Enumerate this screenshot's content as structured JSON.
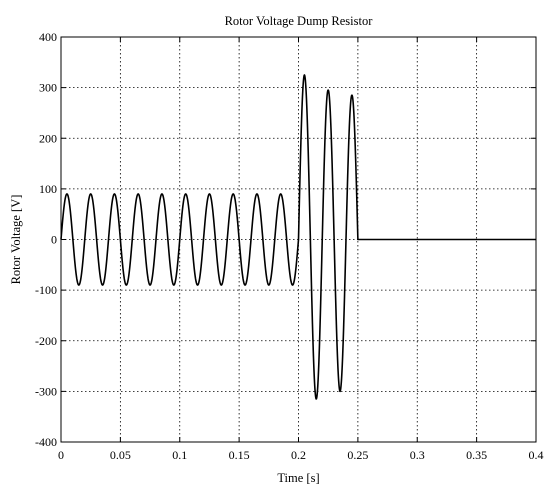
{
  "chart_data": {
    "type": "line",
    "title": "Rotor Voltage Dump Resistor",
    "xlabel": "Time [s]",
    "ylabel": "Rotor Voltage [V]",
    "xlim": [
      0,
      0.4
    ],
    "ylim": [
      -400,
      400
    ],
    "xticks": [
      0,
      0.05,
      0.1,
      0.15,
      0.2,
      0.25,
      0.3,
      0.35,
      0.4
    ],
    "xtick_labels": [
      "0",
      "0.05",
      "0.1",
      "0.15",
      "0.2",
      "0.25",
      "0.3",
      "0.35",
      "0.4"
    ],
    "yticks": [
      -400,
      -300,
      -200,
      -100,
      0,
      100,
      200,
      300,
      400
    ],
    "ytick_labels": [
      "-400",
      "-300",
      "-200",
      "-100",
      "0",
      "100",
      "200",
      "300",
      "400"
    ],
    "grid": true,
    "grid_style": "dotted",
    "line_color": "#000000",
    "series": [
      {
        "segments": [
          {
            "kind": "sine",
            "t_start": 0,
            "t_end": 0.2,
            "amplitude": 90,
            "frequency_hz": 50
          },
          {
            "kind": "sine",
            "t_start": 0.2,
            "t_end": 0.25,
            "frequency_hz": 50,
            "peaks": [
              {
                "t": 0.205,
                "v": 325
              },
              {
                "t": 0.215,
                "v": -315
              },
              {
                "t": 0.225,
                "v": 295
              },
              {
                "t": 0.235,
                "v": -300
              },
              {
                "t": 0.245,
                "v": 285
              }
            ]
          },
          {
            "kind": "constant",
            "t_start": 0.25,
            "t_end": 0.4,
            "value": 0
          }
        ]
      }
    ]
  }
}
